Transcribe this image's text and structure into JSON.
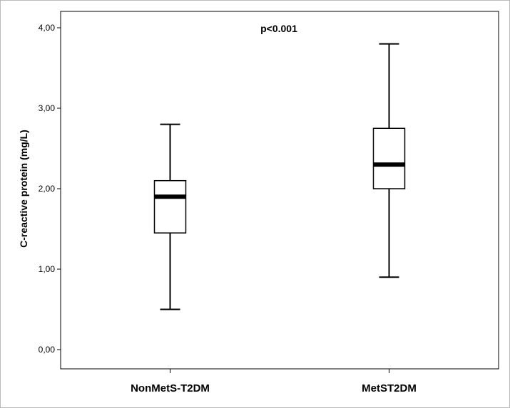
{
  "chart_data": {
    "type": "boxplot",
    "categories": [
      "NonMetS-T2DM",
      "MetST2DM"
    ],
    "boxes": [
      {
        "category": "NonMetS-T2DM",
        "whisker_low": 0.5,
        "q1": 1.45,
        "median": 1.9,
        "q3": 2.1,
        "whisker_high": 2.8
      },
      {
        "category": "MetST2DM",
        "whisker_low": 0.9,
        "q1": 2.0,
        "median": 2.3,
        "q3": 2.75,
        "whisker_high": 3.8
      }
    ],
    "ylabel": "C-reactive protein (mg/L)",
    "xlabel": "",
    "ylim": [
      0,
      4
    ],
    "yticks": [
      0,
      1,
      2,
      3,
      4
    ],
    "ytick_labels": [
      "0,00",
      "1,00",
      "2,00",
      "3,00",
      "4,00"
    ],
    "annotation": "p<0.001",
    "grid": false,
    "colors": {
      "box_fill": "#ffffff",
      "stroke": "#000000",
      "border": "#bbbbbb"
    }
  }
}
